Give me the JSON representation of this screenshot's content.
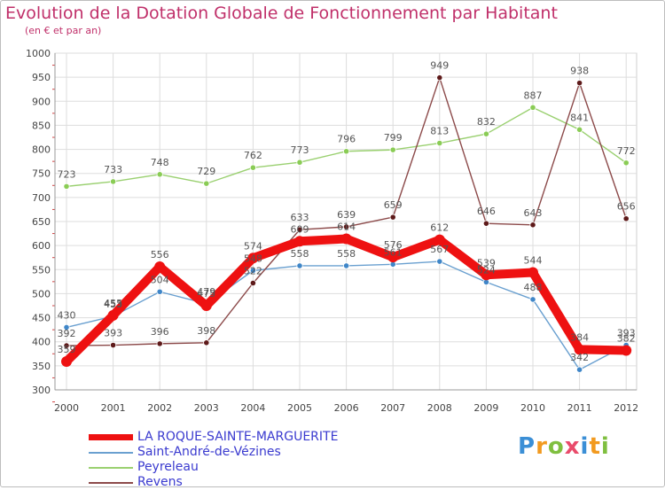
{
  "header": {
    "title": "Evolution de la Dotation Globale de Fonctionnement par Habitant",
    "subtitle": "(en € et par an)"
  },
  "chart_data": {
    "type": "line",
    "title": "Evolution de la Dotation Globale de Fonctionnement par Habitant",
    "subtitle": "(en € et par an)",
    "xlabel": "",
    "ylabel": "",
    "x": [
      "2000",
      "2001",
      "2002",
      "2003",
      "2004",
      "2005",
      "2006",
      "2007",
      "2008",
      "2009",
      "2010",
      "2011",
      "2012"
    ],
    "ylim": [
      300,
      1000
    ],
    "yticks": [
      "300",
      "350",
      "400",
      "450",
      "500",
      "550",
      "600",
      "650",
      "700",
      "750",
      "800",
      "850",
      "900",
      "950",
      "1000"
    ],
    "grid": true,
    "legend_position": "bottom-left",
    "series": [
      {
        "name": "Saint-André-de-Vézines",
        "color": "#6aa0d0",
        "marker_color": "#3f86c8",
        "values": [
          430,
          453,
          504,
          479,
          548,
          558,
          558,
          561,
          567,
          524,
          488,
          342,
          393
        ],
        "labels": [
          "430",
          "453",
          "504",
          "479",
          "548",
          "558",
          "558",
          "561",
          "567",
          "524",
          "488",
          "342",
          "393"
        ]
      },
      {
        "name": "Peyreleau",
        "color": "#9ad070",
        "marker_color": "#8acc55",
        "values": [
          723,
          733,
          748,
          729,
          762,
          773,
          796,
          799,
          813,
          832,
          887,
          841,
          772
        ],
        "labels": [
          "723",
          "733",
          "748",
          "729",
          "762",
          "773",
          "796",
          "799",
          "813",
          "832",
          "887",
          "841",
          "772"
        ]
      },
      {
        "name": "Revens",
        "color": "#8c4a4a",
        "marker_color": "#5e1a1a",
        "values": [
          392,
          393,
          396,
          398,
          522,
          633,
          639,
          659,
          949,
          646,
          643,
          938,
          656
        ],
        "labels": [
          "392",
          "393",
          "396",
          "398",
          "522",
          "633",
          "639",
          "659",
          "949",
          "646",
          "643",
          "938",
          "656"
        ]
      },
      {
        "name": "LA ROQUE-SAINTE-MARGUERITE",
        "color": "#ee1111",
        "marker_color": "#ee1111",
        "values": [
          359,
          455,
          556,
          475,
          574,
          609,
          614,
          576,
          612,
          539,
          544,
          384,
          382
        ],
        "labels": [
          "359",
          "455",
          "556",
          "475",
          "574",
          "609",
          "614",
          "576",
          "612",
          "539",
          "544",
          "384",
          "382"
        ]
      }
    ]
  },
  "legend": {
    "items": [
      {
        "label": "LA ROQUE-SAINTE-MARGUERITE",
        "color": "#ee1111"
      },
      {
        "label": "Saint-André-de-Vézines",
        "color": "#6aa0d0"
      },
      {
        "label": "Peyreleau",
        "color": "#9ad070"
      },
      {
        "label": "Revens",
        "color": "#8c4a4a"
      }
    ]
  },
  "logo": {
    "text": "Proxiti",
    "letter_colors": [
      "#3b8fd6",
      "#f29a1f",
      "#7fbf3f",
      "#e94b6b",
      "#3b8fd6",
      "#f29a1f",
      "#7fbf3f"
    ]
  }
}
